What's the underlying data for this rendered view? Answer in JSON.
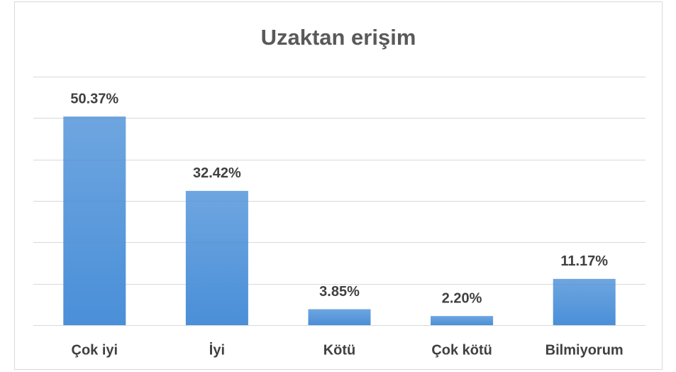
{
  "chart_data": {
    "type": "bar",
    "title": "Uzaktan erişim",
    "categories": [
      "Çok iyi",
      "İyi",
      "Kötü",
      "Çok kötü",
      "Bilmiyorum"
    ],
    "values": [
      50.37,
      32.42,
      3.85,
      2.2,
      11.17
    ],
    "value_labels": [
      "50.37%",
      "32.42%",
      "3.85%",
      "2.20%",
      "11.17%"
    ],
    "color": "#4a8fd8",
    "ylim": [
      0,
      60
    ],
    "yticks": [
      0,
      10,
      20,
      30,
      40,
      50,
      60
    ],
    "grid": true
  }
}
